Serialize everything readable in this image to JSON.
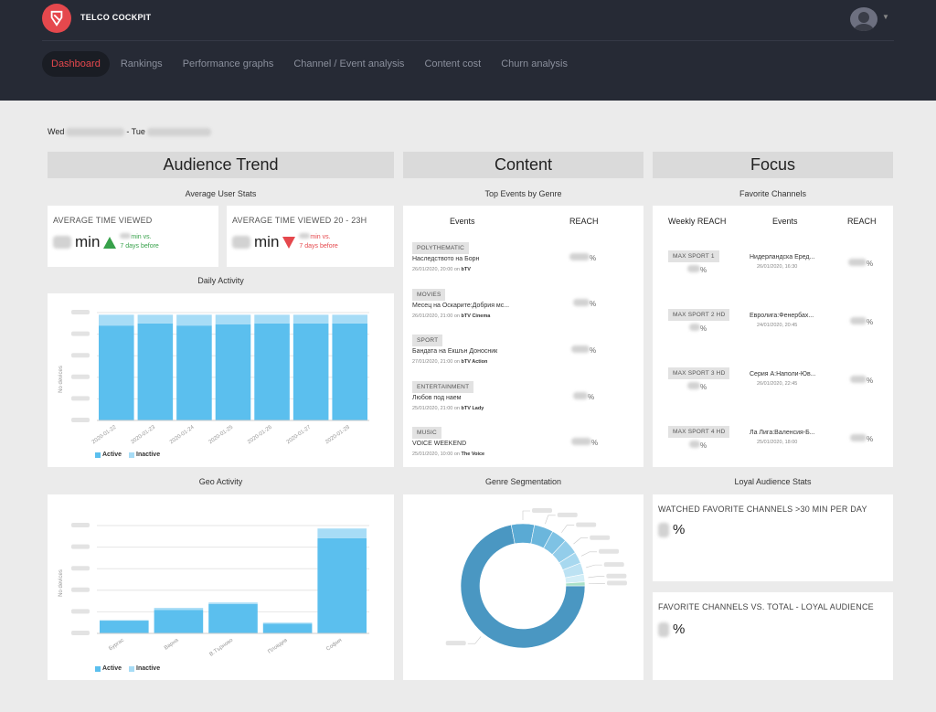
{
  "app": {
    "brand": "TELCO COCKPIT"
  },
  "nav": [
    "Dashboard",
    "Rankings",
    "Performance graphs",
    "Channel / Event analysis",
    "Content cost",
    "Churn analysis"
  ],
  "date_range": {
    "prefix": "Wed",
    "middle": "- Tue"
  },
  "columns": {
    "audience": "Audience Trend",
    "content": "Content",
    "focus": "Focus"
  },
  "avg_user_stats": {
    "title": "Average User Stats",
    "card1": {
      "label": "AVERAGE TIME VIEWED",
      "unit": "min",
      "compare": "min vs.",
      "compare2": "7 days before"
    },
    "card2": {
      "label": "AVERAGE TIME VIEWED 20 - 23H",
      "unit": "min",
      "compare": "min vs.",
      "compare2": "7 days before"
    }
  },
  "daily_activity": {
    "title": "Daily Activity",
    "ylabel": "No devices"
  },
  "geo_activity": {
    "title": "Geo Activity",
    "ylabel": "No devices"
  },
  "legend": {
    "active": "Active",
    "inactive": "Inactive"
  },
  "top_events": {
    "title": "Top Events by Genre",
    "col_events": "Events",
    "col_reach": "REACH",
    "rows": [
      {
        "genre": "POLYTHEMATIC",
        "title": "Наследството на Борн",
        "datetime": "26/01/2020, 20:00 on",
        "channel": "bTV",
        "pct": "%"
      },
      {
        "genre": "MOVIES",
        "title": "Месец на Оскарите:Добрия мс...",
        "datetime": "26/01/2020, 21:00 on",
        "channel": "bTV Cinema",
        "pct": "%"
      },
      {
        "genre": "SPORT",
        "title": "Бандата на Екшън Доносник",
        "datetime": "27/01/2020, 21:00 on",
        "channel": "bTV Action",
        "pct": "%"
      },
      {
        "genre": "ENTERTAINMENT",
        "title": "Любов под наем",
        "datetime": "25/01/2020, 21:00 on",
        "channel": "bTV Lady",
        "pct": "%"
      },
      {
        "genre": "MUSIC",
        "title": "VOICE WEEKEND",
        "datetime": "25/01/2020, 10:00 on",
        "channel": "The Voice",
        "pct": "%"
      }
    ]
  },
  "genre_segmentation": {
    "title": "Genre Segmentation"
  },
  "favorite_channels": {
    "title": "Favorite Channels",
    "col_weekly": "Weekly REACH",
    "col_events": "Events",
    "col_reach": "REACH",
    "rows": [
      {
        "channel": "MAX SPORT 1",
        "weekly_pct": "%",
        "event": "Нидерландска Еред...",
        "datetime": "26/01/2020, 16:30",
        "pct": "%"
      },
      {
        "channel": "MAX SPORT 2 HD",
        "weekly_pct": "%",
        "event": "Евролига:Фенербах...",
        "datetime": "24/01/2020, 20:45",
        "pct": "%"
      },
      {
        "channel": "MAX SPORT 3 HD",
        "weekly_pct": "%",
        "event": "Серия А:Наполи-Юв...",
        "datetime": "26/01/2020, 22:45",
        "pct": "%"
      },
      {
        "channel": "MAX SPORT 4 HD",
        "weekly_pct": "%",
        "event": "Ла Лига:Валенсия-Б...",
        "datetime": "25/01/2020, 18:00",
        "pct": "%"
      }
    ]
  },
  "loyal_audience": {
    "title": "Loyal Audience Stats",
    "card1": {
      "label": "WATCHED FAVORITE CHANNELS >30 MIN PER DAY",
      "unit": "%"
    },
    "card2": {
      "label": "FAVORITE CHANNELS VS. TOTAL - LOYAL AUDIENCE",
      "unit": "%"
    }
  },
  "colors": {
    "accent": "#e5484d",
    "active": "#5bbfee",
    "inactive": "#a7dcf6",
    "up": "#37a14a",
    "down": "#e5484d",
    "donut_main": "#4a97c2"
  },
  "chart_data": [
    {
      "type": "bar",
      "title": "Daily Activity",
      "ylabel": "No devices",
      "categories": [
        "2020-01-22",
        "2020-01-23",
        "2020-01-24",
        "2020-01-25",
        "2020-01-26",
        "2020-01-27",
        "2020-01-28"
      ],
      "series": [
        {
          "name": "Active",
          "values": [
            0.88,
            0.9,
            0.88,
            0.89,
            0.9,
            0.9,
            0.9
          ]
        },
        {
          "name": "Inactive",
          "values": [
            0.1,
            0.08,
            0.1,
            0.09,
            0.08,
            0.08,
            0.08
          ]
        }
      ],
      "stacked": true,
      "ylim": [
        0,
        1
      ],
      "grid": true,
      "legend": "bottom-left"
    },
    {
      "type": "bar",
      "title": "Geo Activity",
      "ylabel": "No devices",
      "categories": [
        "Бургас",
        "Варна",
        "В.Търново",
        "Пловдив",
        "София"
      ],
      "series": [
        {
          "name": "Active",
          "values": [
            0.13,
            0.24,
            0.3,
            0.1,
            0.97
          ]
        },
        {
          "name": "Inactive",
          "values": [
            0.005,
            0.02,
            0.015,
            0.01,
            0.1
          ]
        }
      ],
      "stacked": true,
      "ylim": [
        0,
        1.1
      ],
      "grid": true,
      "legend": "bottom-left"
    },
    {
      "type": "pie",
      "title": "Genre Segmentation",
      "donut": true,
      "values": [
        72,
        6,
        5,
        4,
        4,
        3,
        3,
        2,
        1
      ]
    }
  ]
}
